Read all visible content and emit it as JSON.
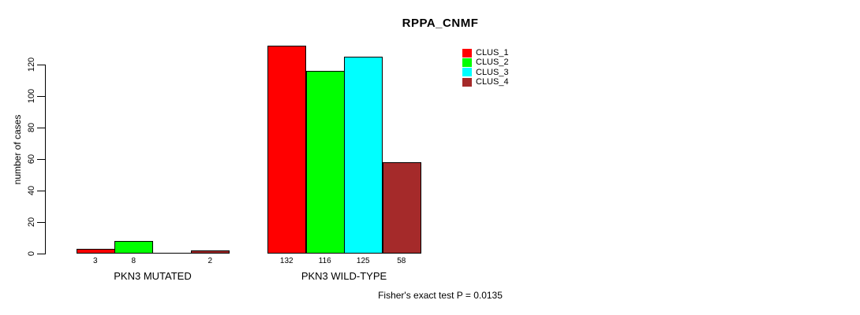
{
  "chart_data": {
    "type": "bar",
    "title": "RPPA_CNMF",
    "xlabel": "",
    "ylabel": "number of cases",
    "ylim": [
      0,
      135
    ],
    "yticks": [
      0,
      20,
      40,
      60,
      80,
      100,
      120
    ],
    "grid": false,
    "legend_position": "top-right",
    "categories": [
      "PKN3 MUTATED",
      "PKN3 WILD-TYPE"
    ],
    "series": [
      {
        "name": "CLUS_1",
        "color": "#FF0000",
        "values": [
          3,
          132
        ]
      },
      {
        "name": "CLUS_2",
        "color": "#00FF00",
        "values": [
          8,
          116
        ]
      },
      {
        "name": "CLUS_3",
        "color": "#00FFFF",
        "values": [
          0,
          125
        ]
      },
      {
        "name": "CLUS_4",
        "color": "#A52A2A",
        "values": [
          2,
          58
        ]
      }
    ],
    "value_labels": [
      [
        "3",
        "8",
        "",
        "2"
      ],
      [
        "132",
        "116",
        "125",
        "58"
      ]
    ],
    "annotation": "Fisher's exact test P = 0.0135",
    "bar_border_color": "#000000",
    "background_color": "#FFFFFF"
  }
}
